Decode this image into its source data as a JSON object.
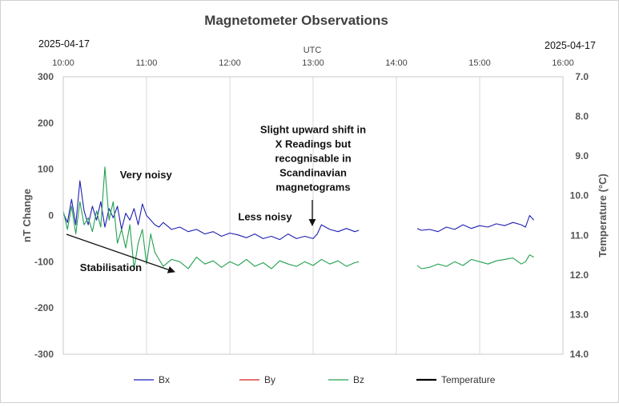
{
  "chart_data": {
    "type": "line",
    "title": "Magnetometer Observations",
    "date_left": "2025-04-17",
    "date_right": "2025-04-17",
    "top_axis_label": "UTC",
    "x_ticks": [
      "10:00",
      "11:00",
      "12:00",
      "13:00",
      "14:00",
      "15:00",
      "16:00"
    ],
    "x_range_hours": [
      10,
      16
    ],
    "ylabel": "nT Change",
    "ylim": [
      -300,
      300
    ],
    "y_ticks": [
      "300",
      "200",
      "100",
      "0",
      "-100",
      "-200",
      "-300"
    ],
    "y2label": "Temperature  (°C)",
    "y2lim": [
      7.0,
      14.0
    ],
    "y2_reversed": true,
    "y2_ticks": [
      "7.0",
      "8.0",
      "9.0",
      "10.0",
      "11.0",
      "12.0",
      "13.0",
      "14.0"
    ],
    "grid": "vertical",
    "legend_position": "bottom",
    "legend": [
      "Bx",
      "By",
      "Bz",
      "Temperature"
    ],
    "series": [
      {
        "name": "Bx",
        "color": "#1f1fb4",
        "x": [
          10.0,
          10.05,
          10.1,
          10.15,
          10.2,
          10.25,
          10.3,
          10.35,
          10.4,
          10.45,
          10.5,
          10.55,
          10.6,
          10.65,
          10.7,
          10.75,
          10.8,
          10.85,
          10.9,
          10.95,
          11.0,
          11.05,
          11.1,
          11.15,
          11.2,
          11.3,
          11.4,
          11.5,
          11.6,
          11.7,
          11.8,
          11.9,
          12.0,
          12.1,
          12.2,
          12.3,
          12.4,
          12.5,
          12.6,
          12.7,
          12.8,
          12.9,
          13.0,
          13.05,
          13.1,
          13.2,
          13.3,
          13.4,
          13.5,
          13.55,
          14.25,
          14.3,
          14.4,
          14.5,
          14.6,
          14.7,
          14.8,
          14.9,
          15.0,
          15.1,
          15.2,
          15.3,
          15.4,
          15.5,
          15.55,
          15.6,
          15.65
        ],
        "y": [
          5,
          -15,
          35,
          -20,
          75,
          10,
          -20,
          20,
          -10,
          30,
          -25,
          15,
          -5,
          20,
          -30,
          5,
          -10,
          15,
          -20,
          25,
          0,
          -10,
          -20,
          -25,
          -15,
          -30,
          -25,
          -35,
          -30,
          -40,
          -35,
          -45,
          -38,
          -42,
          -48,
          -40,
          -50,
          -45,
          -52,
          -40,
          -50,
          -45,
          -50,
          -40,
          -20,
          -30,
          -35,
          -28,
          -35,
          -32,
          -28,
          -32,
          -30,
          -35,
          -25,
          -30,
          -20,
          -28,
          -22,
          -25,
          -18,
          -22,
          -15,
          -20,
          -25,
          0,
          -10
        ]
      },
      {
        "name": "By",
        "color": "#d42020",
        "x": [],
        "y": []
      },
      {
        "name": "Bz",
        "color": "#22a050",
        "x": [
          10.0,
          10.05,
          10.1,
          10.15,
          10.2,
          10.25,
          10.3,
          10.35,
          10.4,
          10.45,
          10.5,
          10.55,
          10.6,
          10.65,
          10.7,
          10.75,
          10.8,
          10.85,
          10.9,
          10.95,
          11.0,
          11.05,
          11.1,
          11.15,
          11.2,
          11.3,
          11.4,
          11.5,
          11.6,
          11.7,
          11.8,
          11.9,
          12.0,
          12.1,
          12.2,
          12.3,
          12.4,
          12.5,
          12.6,
          12.7,
          12.8,
          12.9,
          13.0,
          13.1,
          13.2,
          13.3,
          13.4,
          13.5,
          13.55,
          14.25,
          14.3,
          14.4,
          14.5,
          14.6,
          14.7,
          14.8,
          14.9,
          15.0,
          15.1,
          15.2,
          15.3,
          15.4,
          15.5,
          15.55,
          15.6,
          15.65
        ],
        "y": [
          10,
          -30,
          20,
          -40,
          30,
          -20,
          -5,
          -35,
          10,
          -25,
          105,
          -10,
          30,
          -60,
          -30,
          -70,
          -20,
          -115,
          -60,
          -30,
          -105,
          -40,
          -80,
          -95,
          -110,
          -95,
          -100,
          -115,
          -90,
          -105,
          -98,
          -112,
          -100,
          -108,
          -95,
          -110,
          -102,
          -115,
          -98,
          -105,
          -110,
          -100,
          -108,
          -95,
          -105,
          -98,
          -110,
          -102,
          -100,
          -108,
          -115,
          -112,
          -105,
          -110,
          -100,
          -108,
          -95,
          -100,
          -105,
          -98,
          -95,
          -92,
          -105,
          -100,
          -85,
          -90
        ]
      },
      {
        "name": "Temperature",
        "color": "#000000",
        "x": [],
        "y": []
      }
    ],
    "annotations": [
      {
        "text": "Very noisy",
        "x": 10.68,
        "y": 80
      },
      {
        "text": "Less noisy",
        "x": 12.1,
        "y": -10
      },
      {
        "lines": [
          "Slight upward shift in",
          "X Readings but",
          "recognisable in",
          "Scandinavian",
          "magnetograms"
        ],
        "x": 13.0,
        "y": 178
      },
      {
        "text": "Stabilisation",
        "x": 10.2,
        "y": -120
      }
    ]
  }
}
